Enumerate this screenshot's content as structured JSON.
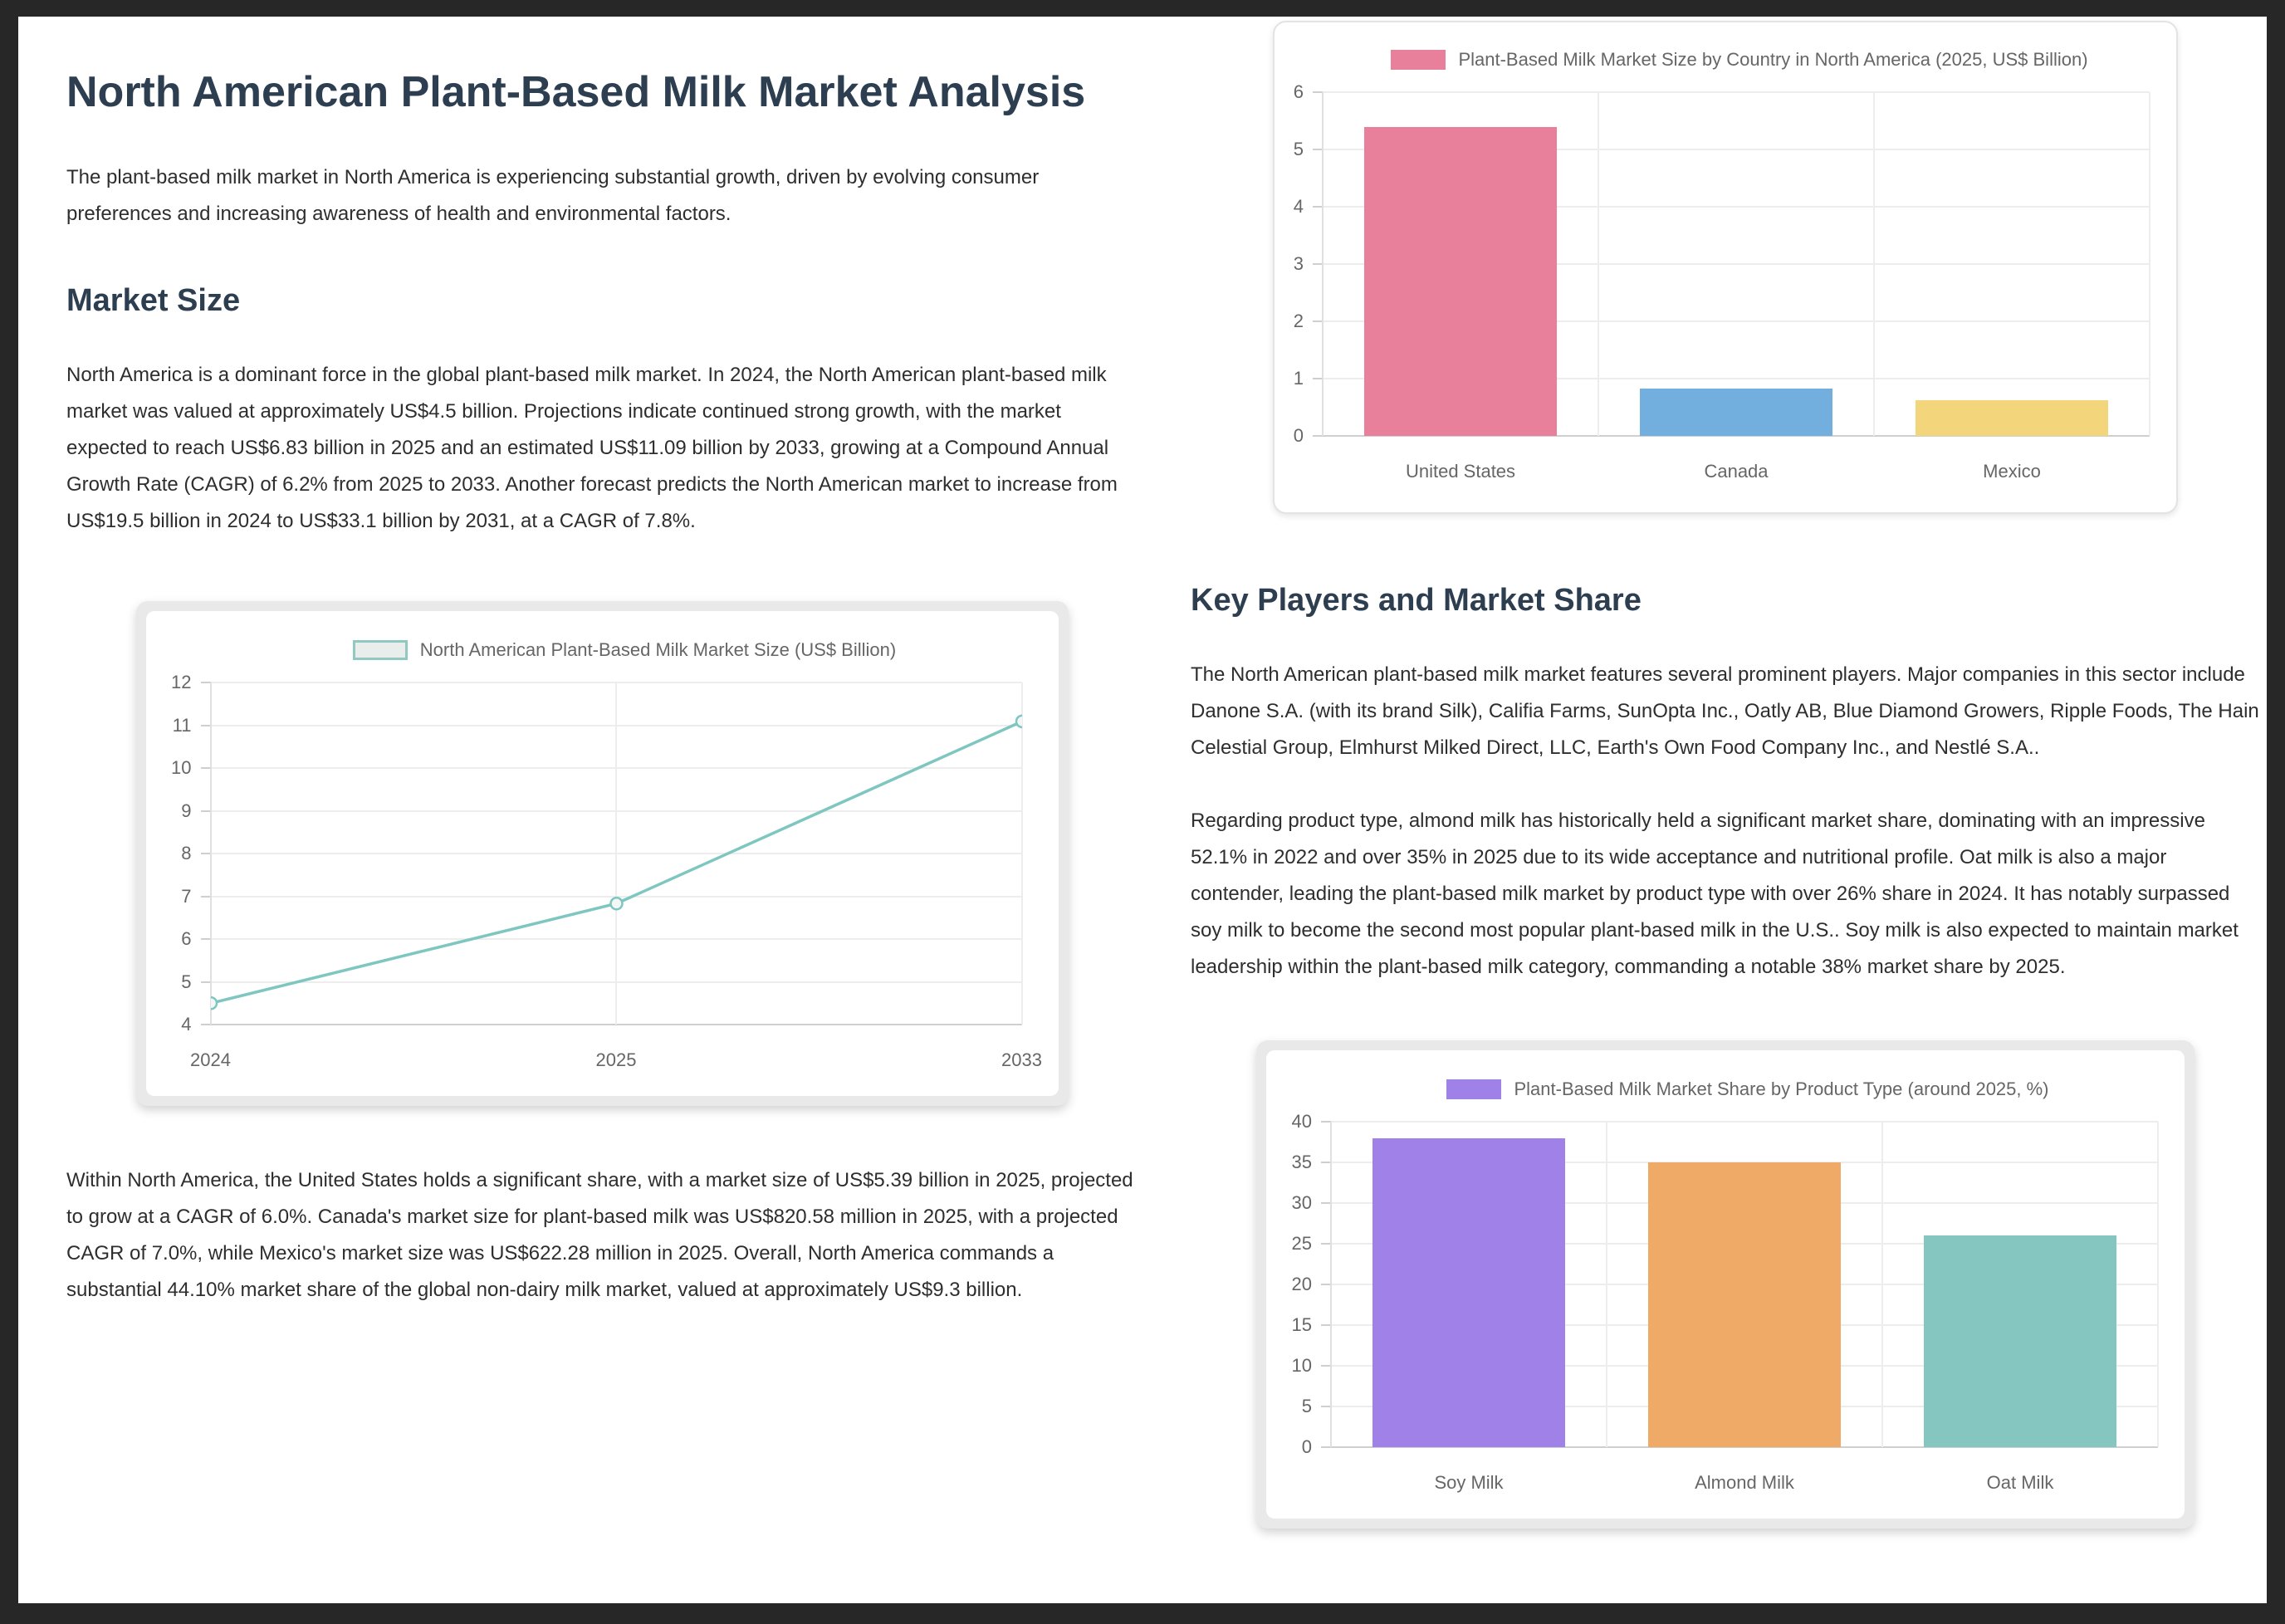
{
  "document": {
    "title": "North American Plant-Based Milk Market Analysis",
    "intro": "The plant-based milk market in North America is experiencing substantial growth, driven by evolving consumer preferences and increasing awareness of health and environmental factors.",
    "market_size": {
      "heading": "Market Size",
      "paragraph1": "North America is a dominant force in the global plant-based milk market. In 2024, the North American plant-based milk market was valued at approximately US$4.5 billion. Projections indicate continued strong growth, with the market expected to reach US$6.83 billion in 2025 and an estimated US$11.09 billion by 2033, growing at a Compound Annual Growth Rate (CAGR) of 6.2% from 2025 to 2033. Another forecast predicts the North American market to increase from US$19.5 billion in 2024 to US$33.1 billion by 2031, at a CAGR of 7.8%.",
      "paragraph2": "Within North America, the United States holds a significant share, with a market size of US$5.39 billion in 2025, projected to grow at a CAGR of 6.0%. Canada's market size for plant-based milk was US$820.58 million in 2025, with a projected CAGR of 7.0%, while Mexico's market size was US$622.28 million in 2025. Overall, North America commands a substantial 44.10% market share of the global non-dairy milk market, valued at approximately US$9.3 billion."
    },
    "key_players": {
      "heading": "Key Players and Market Share",
      "paragraph1": "The North American plant-based milk market features several prominent players. Major companies in this sector include Danone S.A. (with its brand Silk), Califia Farms, SunOpta Inc., Oatly AB, Blue Diamond Growers, Ripple Foods, The Hain Celestial Group, Elmhurst Milked Direct, LLC, Earth's Own Food Company Inc., and Nestlé S.A..",
      "paragraph2": "Regarding product type, almond milk has historically held a significant market share, dominating with an impressive 52.1% in 2022 and over 35% in 2025 due to its wide acceptance and nutritional profile. Oat milk is also a major contender, leading the plant-based milk market by product type with over 26% share in 2024. It has notably surpassed soy milk to become the second most popular plant-based milk in the U.S.. Soy milk is also expected to maintain market leadership within the plant-based milk category, commanding a notable 38% market share by 2025."
    }
  },
  "chart_data": [
    {
      "id": "market-size-trend",
      "type": "line",
      "title": "North American Plant-Based Milk Market Size (US$ Billion)",
      "x": [
        "2024",
        "2025",
        "2033"
      ],
      "series": [
        {
          "name": "North American Plant-Based Milk Market Size (US$ Billion)",
          "values": [
            4.5,
            6.83,
            11.09
          ]
        }
      ],
      "ylim": [
        4,
        12
      ],
      "ystep": 1,
      "grid": true,
      "legend_position": "top",
      "line_color": "#7ec6c0",
      "point_fill": "#f3f8f7",
      "legend_fill": "#e9edeb",
      "legend_border": "#8fc9c2"
    },
    {
      "id": "market-size-by-country",
      "type": "bar",
      "title": "Plant-Based Milk Market Size by Country in North America (2025, US$ Billion)",
      "categories": [
        "United States",
        "Canada",
        "Mexico"
      ],
      "values": [
        5.39,
        0.82,
        0.62
      ],
      "colors": [
        "#e8809b",
        "#72aede",
        "#f3d57c"
      ],
      "ylim": [
        0,
        6
      ],
      "ystep": 1,
      "grid": true,
      "legend_position": "top"
    },
    {
      "id": "market-share-by-product",
      "type": "bar",
      "title": "Plant-Based Milk Market Share by Product Type (around 2025, %)",
      "categories": [
        "Soy Milk",
        "Almond Milk",
        "Oat Milk"
      ],
      "values": [
        38,
        35,
        26
      ],
      "colors": [
        "#a081e8",
        "#f0aa67",
        "#86c6c0"
      ],
      "ylim": [
        0,
        40
      ],
      "ystep": 5,
      "grid": true,
      "legend_position": "top"
    }
  ],
  "frame_color": "#272727",
  "heading_color": "#2c3e50"
}
